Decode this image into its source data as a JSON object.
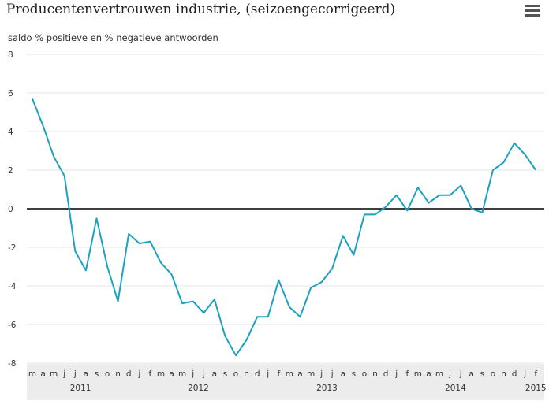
{
  "header": {
    "title": "Producentenvertrouwen industrie, (seizoengecorrigeerd)",
    "menu_icon": "hamburger-menu-icon"
  },
  "chart_data": {
    "type": "line",
    "title": "Producentenvertrouwen industrie, (seizoengecorrigeerd)",
    "ylabel": "saldo % positieve en % negatieve antwoorden",
    "xlabel": "",
    "ylim": [
      -8,
      8
    ],
    "yticks": [
      8,
      6,
      4,
      2,
      0,
      -2,
      -4,
      -6,
      -8
    ],
    "grid": true,
    "colors": {
      "series": "#1ba2be",
      "zero_line": "#000000",
      "grid": "#e6e6e6",
      "axis_band": "#ececec"
    },
    "x_month_labels": [
      "m",
      "a",
      "m",
      "j",
      "j",
      "a",
      "s",
      "o",
      "n",
      "d",
      "j",
      "f",
      "m",
      "a",
      "m",
      "j",
      "j",
      "a",
      "s",
      "o",
      "n",
      "d",
      "j",
      "f",
      "m",
      "a",
      "m",
      "j",
      "j",
      "a",
      "s",
      "o",
      "n",
      "d",
      "j",
      "f",
      "m",
      "a",
      "m",
      "j",
      "j",
      "a",
      "s",
      "o",
      "n",
      "d",
      "j",
      "f"
    ],
    "x_year_labels": [
      {
        "label": "2011",
        "index": 4.5
      },
      {
        "label": "2012",
        "index": 15.5
      },
      {
        "label": "2013",
        "index": 27.5
      },
      {
        "label": "2014",
        "index": 39.5
      },
      {
        "label": "2015",
        "index": 47
      }
    ],
    "x": [
      "2011-03",
      "2011-04",
      "2011-05",
      "2011-06",
      "2011-07",
      "2011-08",
      "2011-09",
      "2011-10",
      "2011-11",
      "2011-12",
      "2012-01",
      "2012-02",
      "2012-03",
      "2012-04",
      "2012-05",
      "2012-06",
      "2012-07",
      "2012-08",
      "2012-09",
      "2012-10",
      "2012-11",
      "2012-12",
      "2013-01",
      "2013-02",
      "2013-03",
      "2013-04",
      "2013-05",
      "2013-06",
      "2013-07",
      "2013-08",
      "2013-09",
      "2013-10",
      "2013-11",
      "2013-12",
      "2014-01",
      "2014-02",
      "2014-03",
      "2014-04",
      "2014-05",
      "2014-06",
      "2014-07",
      "2014-08",
      "2014-09",
      "2014-10",
      "2014-11",
      "2014-12",
      "2015-01",
      "2015-02"
    ],
    "series": [
      {
        "values": [
          5.7,
          4.3,
          2.7,
          1.7,
          -2.2,
          -3.2,
          -0.5,
          -3.0,
          -4.8,
          -1.3,
          -1.8,
          -1.7,
          -2.8,
          -3.4,
          -4.9,
          -4.8,
          -5.4,
          -4.7,
          -6.6,
          -7.6,
          -6.8,
          -5.6,
          -5.6,
          -3.7,
          -5.1,
          -5.6,
          -4.1,
          -3.8,
          -3.1,
          -1.4,
          -2.4,
          -0.3,
          -0.3,
          0.1,
          0.7,
          -0.1,
          1.1,
          0.3,
          0.7,
          0.7,
          1.2,
          0.0,
          -0.2,
          2.0,
          2.4,
          3.4,
          2.8,
          2.0
        ]
      }
    ]
  }
}
